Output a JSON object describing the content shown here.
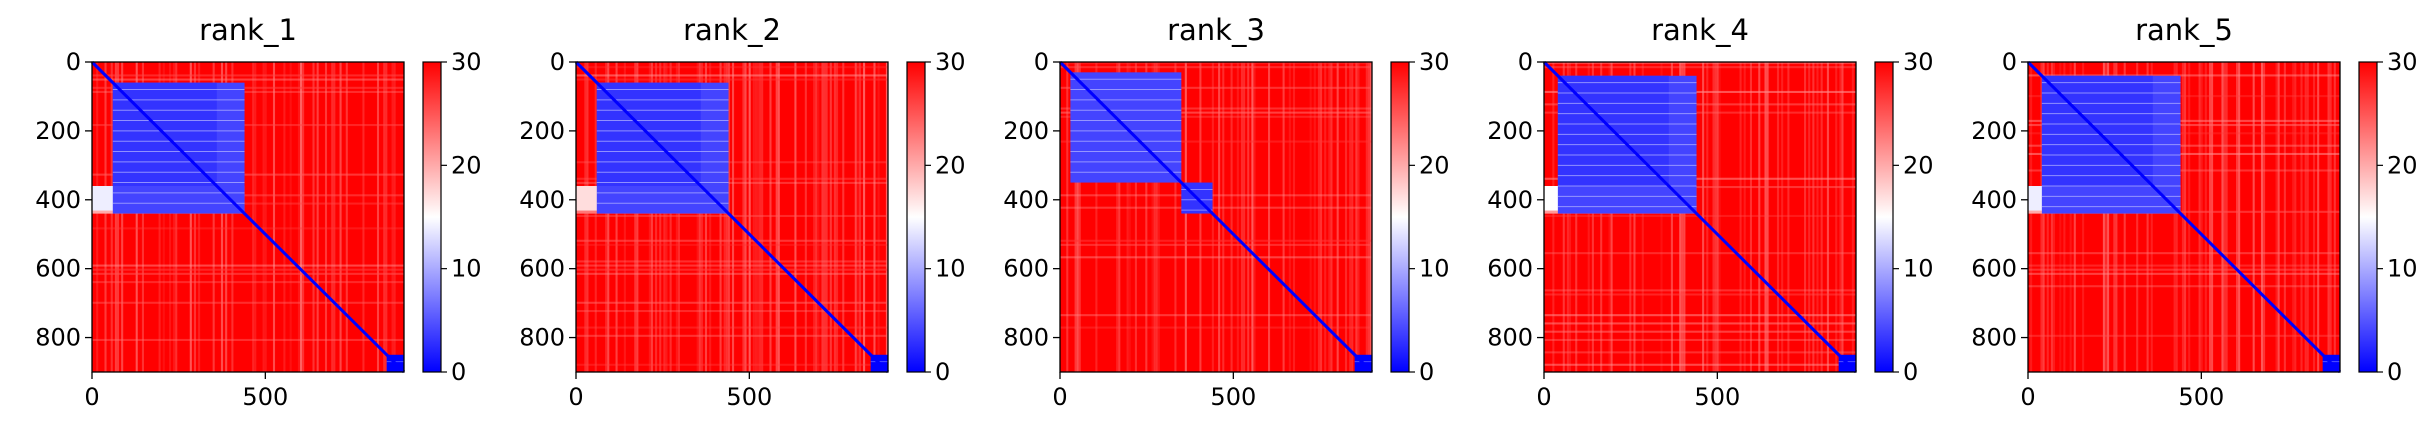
{
  "chart_data": [
    {
      "type": "heatmap",
      "title": "rank_1",
      "size": 900,
      "xticks": [
        0,
        500
      ],
      "yticks": [
        0,
        200,
        400,
        600,
        800
      ],
      "xlim": [
        0,
        900
      ],
      "ylim": [
        900,
        0
      ],
      "colorbar": {
        "range": [
          0,
          30
        ],
        "ticks": [
          0,
          10,
          20,
          30
        ],
        "colors": [
          "#0000ff",
          "#ffffff",
          "#ff0000"
        ]
      },
      "blocks": [
        {
          "range": [
            60,
            440
          ],
          "inner_range": [
            60,
            360
          ],
          "level": 4
        },
        {
          "range": [
            850,
            900
          ],
          "level": 0
        }
      ],
      "bands": [
        {
          "y": [
            360,
            440
          ],
          "x": [
            0,
            440
          ],
          "level": 14
        }
      ]
    },
    {
      "type": "heatmap",
      "title": "rank_2",
      "size": 900,
      "xticks": [
        0,
        500
      ],
      "yticks": [
        0,
        200,
        400,
        600,
        800
      ],
      "xlim": [
        0,
        900
      ],
      "ylim": [
        900,
        0
      ],
      "colorbar": {
        "range": [
          0,
          30
        ],
        "ticks": [
          0,
          10,
          20,
          30
        ],
        "colors": [
          "#0000ff",
          "#ffffff",
          "#ff0000"
        ]
      },
      "blocks": [
        {
          "range": [
            60,
            440
          ],
          "inner_range": [
            60,
            360
          ],
          "level": 4
        },
        {
          "range": [
            850,
            900
          ],
          "level": 0
        }
      ],
      "bands": [
        {
          "y": [
            360,
            440
          ],
          "x": [
            0,
            440
          ],
          "level": 17
        }
      ]
    },
    {
      "type": "heatmap",
      "title": "rank_3",
      "size": 900,
      "xticks": [
        0,
        500
      ],
      "yticks": [
        0,
        200,
        400,
        600,
        800
      ],
      "xlim": [
        0,
        900
      ],
      "ylim": [
        900,
        0
      ],
      "colorbar": {
        "range": [
          0,
          30
        ],
        "ticks": [
          0,
          10,
          20,
          30
        ],
        "colors": [
          "#0000ff",
          "#ffffff",
          "#ff0000"
        ]
      },
      "blocks": [
        {
          "range": [
            30,
            350
          ],
          "level": 4
        },
        {
          "range": [
            350,
            440
          ],
          "level": 3
        },
        {
          "range": [
            850,
            900
          ],
          "level": 0
        }
      ],
      "bands": []
    },
    {
      "type": "heatmap",
      "title": "rank_4",
      "size": 900,
      "xticks": [
        0,
        500
      ],
      "yticks": [
        0,
        200,
        400,
        600,
        800
      ],
      "xlim": [
        0,
        900
      ],
      "ylim": [
        900,
        0
      ],
      "colorbar": {
        "range": [
          0,
          30
        ],
        "ticks": [
          0,
          10,
          20,
          30
        ],
        "colors": [
          "#0000ff",
          "#ffffff",
          "#ff0000"
        ]
      },
      "blocks": [
        {
          "range": [
            40,
            440
          ],
          "inner_range": [
            40,
            360
          ],
          "level": 4
        },
        {
          "range": [
            850,
            900
          ],
          "level": 0
        }
      ],
      "bands": [
        {
          "y": [
            360,
            440
          ],
          "x": [
            0,
            440
          ],
          "level": 15
        }
      ]
    },
    {
      "type": "heatmap",
      "title": "rank_5",
      "size": 900,
      "xticks": [
        0,
        500
      ],
      "yticks": [
        0,
        200,
        400,
        600,
        800
      ],
      "xlim": [
        0,
        900
      ],
      "ylim": [
        900,
        0
      ],
      "colorbar": {
        "range": [
          0,
          30
        ],
        "ticks": [
          0,
          10,
          20,
          30
        ],
        "colors": [
          "#0000ff",
          "#ffffff",
          "#ff0000"
        ]
      },
      "blocks": [
        {
          "range": [
            40,
            440
          ],
          "inner_range": [
            40,
            360
          ],
          "level": 4
        },
        {
          "range": [
            850,
            900
          ],
          "level": 0
        }
      ],
      "bands": [
        {
          "y": [
            360,
            440
          ],
          "x": [
            0,
            440
          ],
          "level": 14
        }
      ]
    }
  ]
}
